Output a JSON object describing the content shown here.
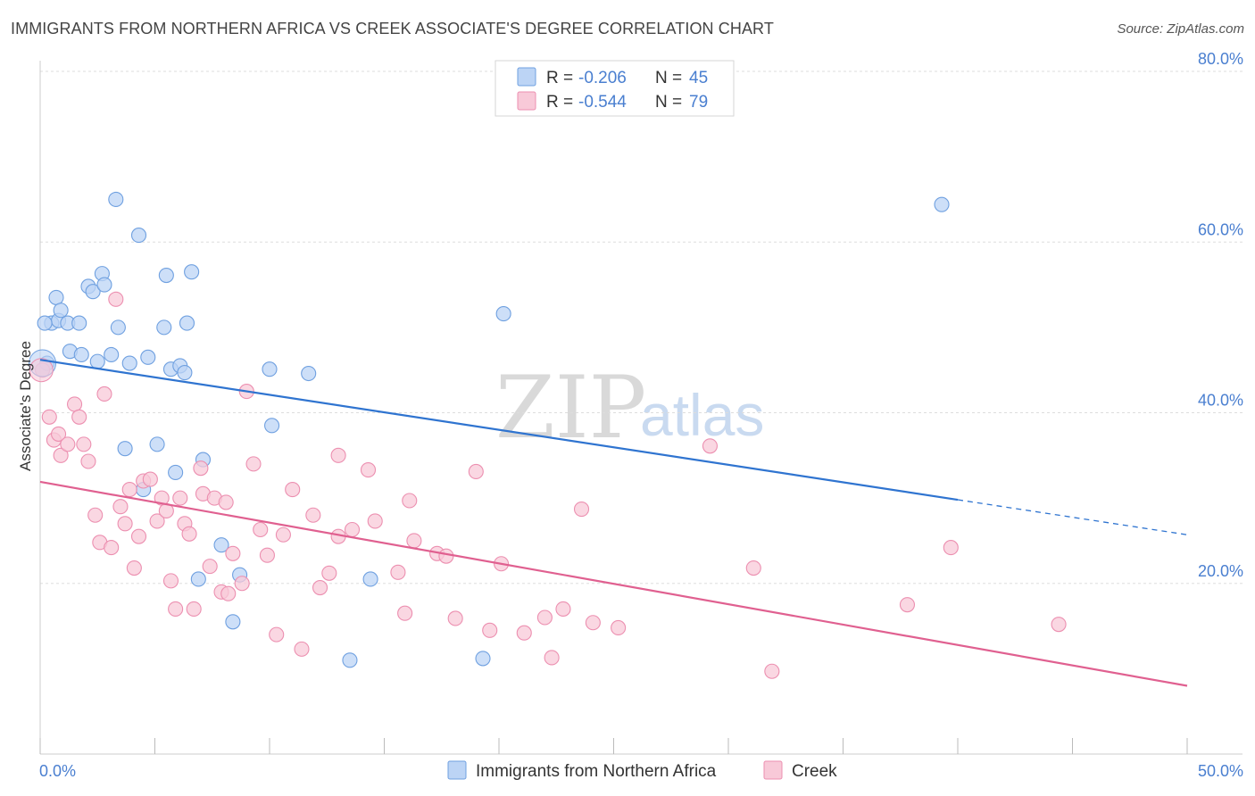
{
  "title": "IMMIGRANTS FROM NORTHERN AFRICA VS CREEK ASSOCIATE'S DEGREE CORRELATION CHART",
  "source": "Source: ZipAtlas.com",
  "watermark": {
    "zip": "ZIP",
    "atlas": "atlas"
  },
  "legend": {
    "r_label": "R =",
    "n_label": "N =",
    "series": [
      {
        "r": "-0.206",
        "n": "45"
      },
      {
        "r": "-0.544",
        "n": "79"
      }
    ]
  },
  "chart_data": {
    "type": "scatter",
    "title": "IMMIGRANTS FROM NORTHERN AFRICA VS CREEK ASSOCIATE'S DEGREE CORRELATION CHART",
    "xlabel": "",
    "ylabel": "Associate's Degree",
    "xlim": [
      0,
      50
    ],
    "ylim": [
      0,
      80
    ],
    "x_tick_labels": [
      "0.0%",
      "50.0%"
    ],
    "y_ticks": [
      20,
      40,
      60,
      80
    ],
    "y_tick_labels": [
      "20.0%",
      "40.0%",
      "60.0%",
      "80.0%"
    ],
    "grid": true,
    "series": [
      {
        "name": "Immigrants from Northern Africa",
        "color": "#6fa0e0",
        "fill": "#bcd4f5",
        "line_color": "#2f74d0",
        "trend": {
          "x0": 0,
          "y0": 46.2,
          "x1": 40,
          "y1": 29.8,
          "dash_x1": 50,
          "dash_y1": 25.7
        },
        "points": [
          [
            0.3,
            45.8
          ],
          [
            0.5,
            50.5
          ],
          [
            0.7,
            53.5
          ],
          [
            0.8,
            50.8
          ],
          [
            0.9,
            52.0
          ],
          [
            1.2,
            50.5
          ],
          [
            1.3,
            47.2
          ],
          [
            1.7,
            50.5
          ],
          [
            1.8,
            46.8
          ],
          [
            2.1,
            54.8
          ],
          [
            2.3,
            54.2
          ],
          [
            2.5,
            46.0
          ],
          [
            2.7,
            56.3
          ],
          [
            2.8,
            55.0
          ],
          [
            3.1,
            46.8
          ],
          [
            3.4,
            50.0
          ],
          [
            3.3,
            65.0
          ],
          [
            3.7,
            35.8
          ],
          [
            3.9,
            45.8
          ],
          [
            4.3,
            60.8
          ],
          [
            4.5,
            31.0
          ],
          [
            4.7,
            46.5
          ],
          [
            5.1,
            36.3
          ],
          [
            5.4,
            50.0
          ],
          [
            5.5,
            56.1
          ],
          [
            5.7,
            45.1
          ],
          [
            5.9,
            33.0
          ],
          [
            6.1,
            45.5
          ],
          [
            6.3,
            44.7
          ],
          [
            6.4,
            50.5
          ],
          [
            6.6,
            56.5
          ],
          [
            6.9,
            20.5
          ],
          [
            7.1,
            34.5
          ],
          [
            7.9,
            24.5
          ],
          [
            8.4,
            15.5
          ],
          [
            8.7,
            21.0
          ],
          [
            10.0,
            45.1
          ],
          [
            10.1,
            38.5
          ],
          [
            11.7,
            44.6
          ],
          [
            13.5,
            11.0
          ],
          [
            14.4,
            20.5
          ],
          [
            19.3,
            11.2
          ],
          [
            20.2,
            51.6
          ],
          [
            39.3,
            64.4
          ],
          [
            0.2,
            50.5
          ]
        ]
      },
      {
        "name": "Creek",
        "color": "#ec8fb0",
        "fill": "#f8c9d8",
        "line_color": "#e06090",
        "trend": {
          "x0": 0,
          "y0": 31.9,
          "x1": 50,
          "y1": 8.0
        },
        "points": [
          [
            0.1,
            45.0
          ],
          [
            0.4,
            39.5
          ],
          [
            0.6,
            36.8
          ],
          [
            0.8,
            37.5
          ],
          [
            0.9,
            35.0
          ],
          [
            1.2,
            36.3
          ],
          [
            1.5,
            41.0
          ],
          [
            1.7,
            39.5
          ],
          [
            1.9,
            36.3
          ],
          [
            2.1,
            34.3
          ],
          [
            2.4,
            28.0
          ],
          [
            2.6,
            24.8
          ],
          [
            2.8,
            42.2
          ],
          [
            3.1,
            24.2
          ],
          [
            3.3,
            53.3
          ],
          [
            3.5,
            29.0
          ],
          [
            3.7,
            27.0
          ],
          [
            3.9,
            31.0
          ],
          [
            4.1,
            21.8
          ],
          [
            4.3,
            25.5
          ],
          [
            4.5,
            32.0
          ],
          [
            4.8,
            32.2
          ],
          [
            5.1,
            27.3
          ],
          [
            5.3,
            30.0
          ],
          [
            5.5,
            28.5
          ],
          [
            5.7,
            20.3
          ],
          [
            5.9,
            17.0
          ],
          [
            6.1,
            30.0
          ],
          [
            6.3,
            27.0
          ],
          [
            6.5,
            25.8
          ],
          [
            6.7,
            17.0
          ],
          [
            7.0,
            33.5
          ],
          [
            7.1,
            30.5
          ],
          [
            7.4,
            22.0
          ],
          [
            7.6,
            30.0
          ],
          [
            7.9,
            19.0
          ],
          [
            8.1,
            29.5
          ],
          [
            8.2,
            18.8
          ],
          [
            8.4,
            23.5
          ],
          [
            8.8,
            20.0
          ],
          [
            9.0,
            42.5
          ],
          [
            9.3,
            34.0
          ],
          [
            9.6,
            26.3
          ],
          [
            9.9,
            23.3
          ],
          [
            10.3,
            14.0
          ],
          [
            10.6,
            25.7
          ],
          [
            11.0,
            31.0
          ],
          [
            11.4,
            12.3
          ],
          [
            11.9,
            28.0
          ],
          [
            12.6,
            21.2
          ],
          [
            13.0,
            25.5
          ],
          [
            13.6,
            26.3
          ],
          [
            14.3,
            33.3
          ],
          [
            14.6,
            27.3
          ],
          [
            15.6,
            21.3
          ],
          [
            15.9,
            16.5
          ],
          [
            16.1,
            29.7
          ],
          [
            16.3,
            25.0
          ],
          [
            17.3,
            23.5
          ],
          [
            17.7,
            23.2
          ],
          [
            18.1,
            15.9
          ],
          [
            19.0,
            33.1
          ],
          [
            19.6,
            14.5
          ],
          [
            20.1,
            22.3
          ],
          [
            21.1,
            14.2
          ],
          [
            22.0,
            16.0
          ],
          [
            22.3,
            11.3
          ],
          [
            22.8,
            17.0
          ],
          [
            23.6,
            28.7
          ],
          [
            24.1,
            15.4
          ],
          [
            25.2,
            14.8
          ],
          [
            29.2,
            36.1
          ],
          [
            31.1,
            21.8
          ],
          [
            31.9,
            9.7
          ],
          [
            37.8,
            17.5
          ],
          [
            39.7,
            24.2
          ],
          [
            44.4,
            15.2
          ],
          [
            12.2,
            19.5
          ],
          [
            13.0,
            35.0
          ]
        ]
      }
    ]
  }
}
